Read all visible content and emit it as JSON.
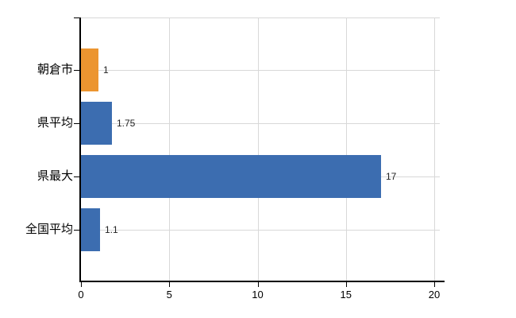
{
  "chart_data": {
    "type": "bar",
    "orientation": "horizontal",
    "title": "",
    "categories": [
      "朝倉市",
      "県平均",
      "県最大",
      "全国平均"
    ],
    "values": [
      1,
      1.75,
      17,
      1.1
    ],
    "value_labels": [
      "1",
      "1.75",
      "17",
      "1.1"
    ],
    "bar_colors": [
      "#EC9530",
      "#3C6DB0",
      "#3C6DB0",
      "#3C6DB0"
    ],
    "highlight_index": 0,
    "xlim": [
      0,
      20
    ],
    "x_tick_values": [
      0,
      5,
      10,
      15,
      20
    ],
    "x_tick_labels": [
      "0",
      "5",
      "10",
      "15",
      "20"
    ],
    "grid": true,
    "legend_position": "none"
  },
  "colors": {
    "highlight_bar": "#EC9530",
    "default_bar": "#3C6DB0",
    "gridline": "#D8D8D8",
    "axis": "#000000",
    "background": "#FFFFFF",
    "value_text": "#222222",
    "label_text": "#000000"
  }
}
